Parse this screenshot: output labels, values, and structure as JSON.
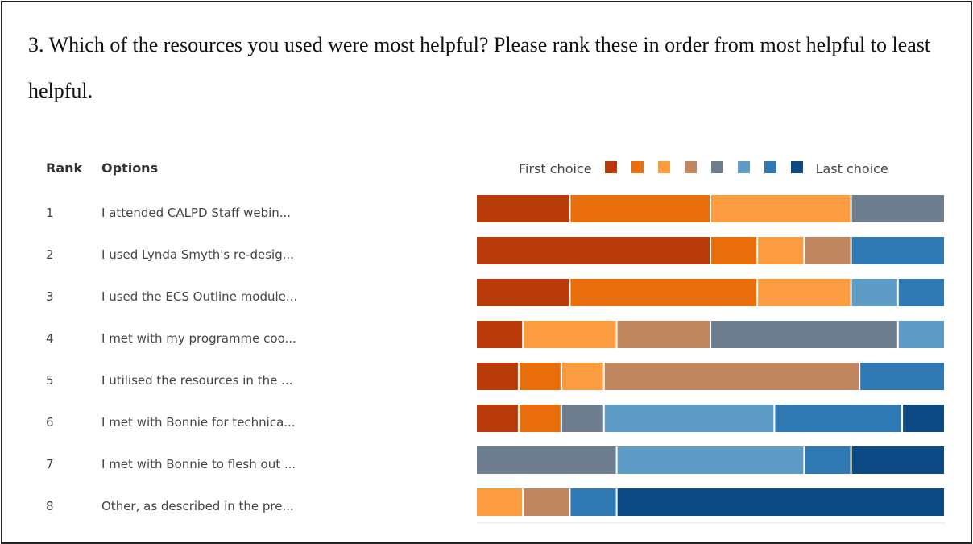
{
  "question": "3. Which of the resources you used were most helpful? Please rank these in order from most helpful to least helpful.",
  "table": {
    "rank_header": "Rank",
    "options_header": "Options"
  },
  "legend": {
    "first_label": "First choice",
    "last_label": "Last choice",
    "colors": [
      "#b83a0b",
      "#e86e0c",
      "#fb9c40",
      "#c0865f",
      "#6f7e8f",
      "#5f9cc5",
      "#2f79b5",
      "#0d4a84"
    ]
  },
  "chart_data": {
    "type": "bar",
    "orientation": "horizontal",
    "stacked": true,
    "normalized": true,
    "legend_position": "top",
    "grid": false,
    "categories": [
      "I attended CALPD Staff webin...",
      "I used Lynda Smyth's re-desig...",
      "I used the ECS Outline module...",
      "I met with my programme coo...",
      "I utilised the resources in the ...",
      "I met with Bonnie for technica...",
      "I met with Bonnie to flesh out ...",
      "Other, as described in the pre..."
    ],
    "ranks": [
      "1",
      "2",
      "3",
      "4",
      "5",
      "6",
      "7",
      "8"
    ],
    "series": [
      {
        "values": [
          2,
          5,
          2,
          1,
          1,
          1,
          0,
          0
        ]
      },
      {
        "values": [
          3,
          1,
          4,
          0,
          1,
          1,
          0,
          0
        ]
      },
      {
        "values": [
          3,
          1,
          2,
          2,
          1,
          0,
          0,
          1
        ]
      },
      {
        "values": [
          0,
          1,
          0,
          2,
          6,
          0,
          0,
          1
        ]
      },
      {
        "values": [
          2,
          0,
          0,
          4,
          0,
          1,
          3,
          0
        ]
      },
      {
        "values": [
          0,
          0,
          1,
          1,
          0,
          4,
          4,
          0
        ]
      },
      {
        "values": [
          0,
          2,
          1,
          0,
          2,
          3,
          1,
          1
        ]
      },
      {
        "values": [
          0,
          0,
          0,
          0,
          0,
          1,
          2,
          7
        ]
      }
    ]
  }
}
